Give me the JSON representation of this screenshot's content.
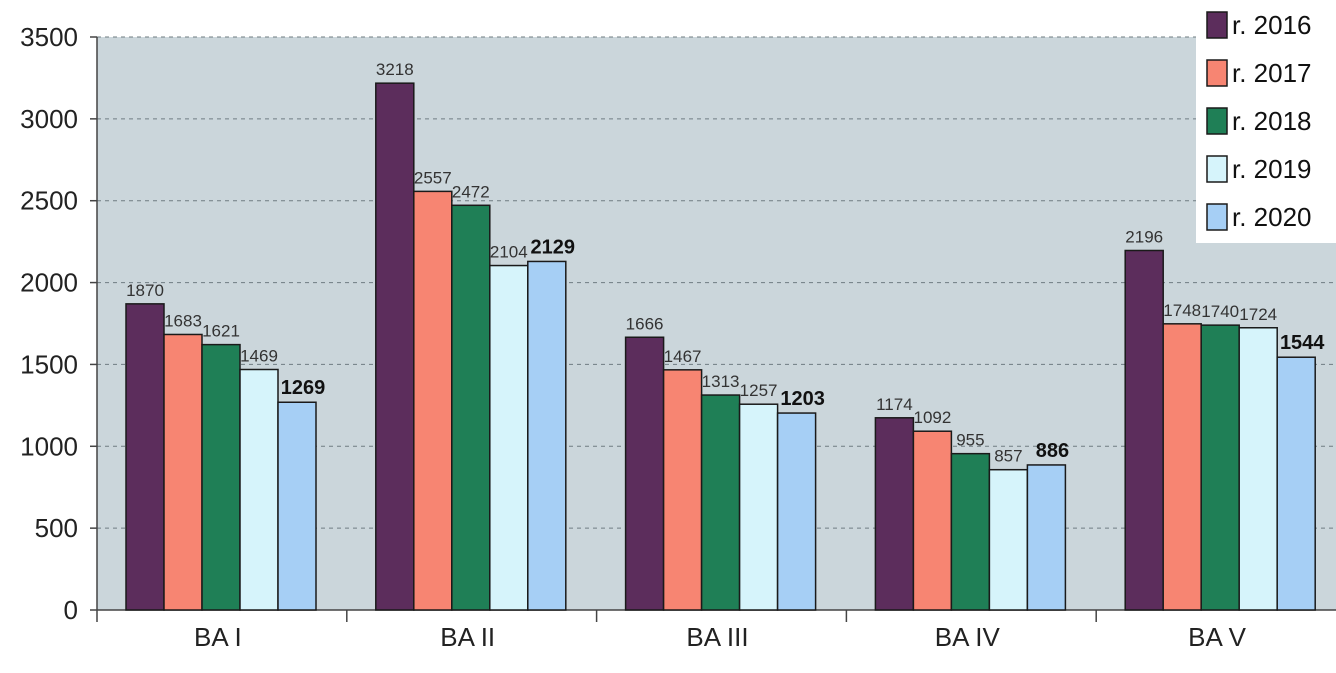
{
  "chart_data": {
    "type": "bar",
    "categories": [
      "BA I",
      "BA II",
      "BA III",
      "BA IV",
      "BA V"
    ],
    "series": [
      {
        "name": "r. 2016",
        "color": "#5c2d5c",
        "values": [
          1870,
          3218,
          1666,
          1174,
          2196
        ]
      },
      {
        "name": "r. 2017",
        "color": "#f78572",
        "values": [
          1683,
          2557,
          1467,
          1092,
          1748
        ]
      },
      {
        "name": "r. 2018",
        "color": "#1f7f56",
        "values": [
          1621,
          2472,
          1313,
          955,
          1740
        ]
      },
      {
        "name": "r. 2019",
        "color": "#d6f4fb",
        "values": [
          1469,
          2104,
          1257,
          857,
          1724
        ]
      },
      {
        "name": "r. 2020",
        "color": "#a6cff5",
        "values": [
          1269,
          2129,
          1203,
          886,
          1544
        ]
      }
    ],
    "ylim": [
      0,
      3500
    ],
    "yticks": [
      0,
      500,
      1000,
      1500,
      2000,
      2500,
      3000,
      3500
    ],
    "grid": true,
    "legend_position": "top-right",
    "plot_background": "#cbd6db",
    "bold_series": "r. 2020"
  }
}
